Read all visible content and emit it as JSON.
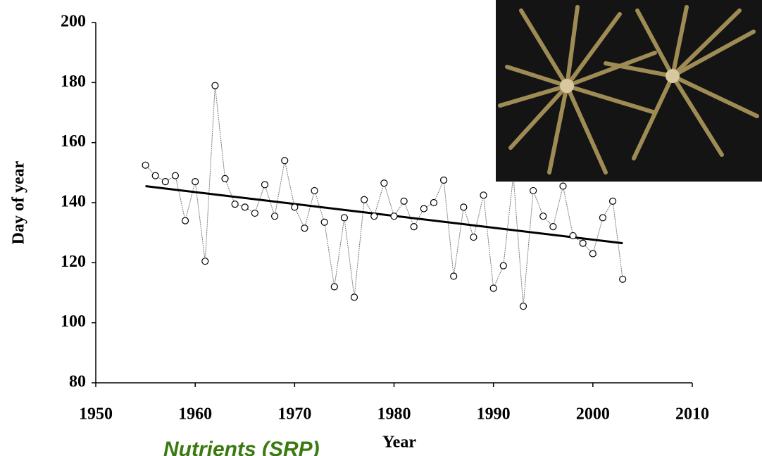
{
  "chart_data": {
    "type": "line",
    "x": [
      1955,
      1956,
      1957,
      1958,
      1959,
      1960,
      1961,
      1962,
      1963,
      1964,
      1965,
      1966,
      1967,
      1968,
      1969,
      1970,
      1971,
      1972,
      1973,
      1974,
      1975,
      1976,
      1977,
      1978,
      1979,
      1980,
      1981,
      1982,
      1983,
      1984,
      1985,
      1986,
      1987,
      1988,
      1989,
      1990,
      1991,
      1992,
      1993,
      1994,
      1995,
      1996,
      1997,
      1998,
      1999,
      2000,
      2001,
      2002,
      2003
    ],
    "series": [
      {
        "color": "#777777",
        "values": [
          152.5,
          149,
          147,
          149,
          134,
          147,
          120.5,
          179,
          148,
          139.5,
          138.5,
          136.5,
          146,
          135.5,
          154,
          138.5,
          131.5,
          144,
          133.5,
          112,
          135,
          108.5,
          141,
          135.5,
          146.5,
          135.5,
          140.5,
          132,
          138,
          140,
          147.5,
          115.5,
          138.5,
          128.5,
          142.5,
          111.5,
          119,
          149,
          105.5,
          144,
          135.5,
          132,
          145.5,
          129,
          126.5,
          123,
          135,
          140.5,
          114.5
        ]
      }
    ],
    "trend": {
      "color": "#000000",
      "x": [
        1955,
        2003
      ],
      "values": [
        145.5,
        126.5
      ]
    },
    "xlabel": "Year",
    "ylabel": "Day of year",
    "xlim": [
      1950,
      2010
    ],
    "ylim": [
      80,
      200
    ],
    "xticks": [
      1950,
      1960,
      1970,
      1980,
      1990,
      2000,
      2010
    ],
    "yticks": [
      80,
      100,
      120,
      140,
      160,
      180,
      200
    ],
    "caption": "Nutrients (SRP)"
  }
}
